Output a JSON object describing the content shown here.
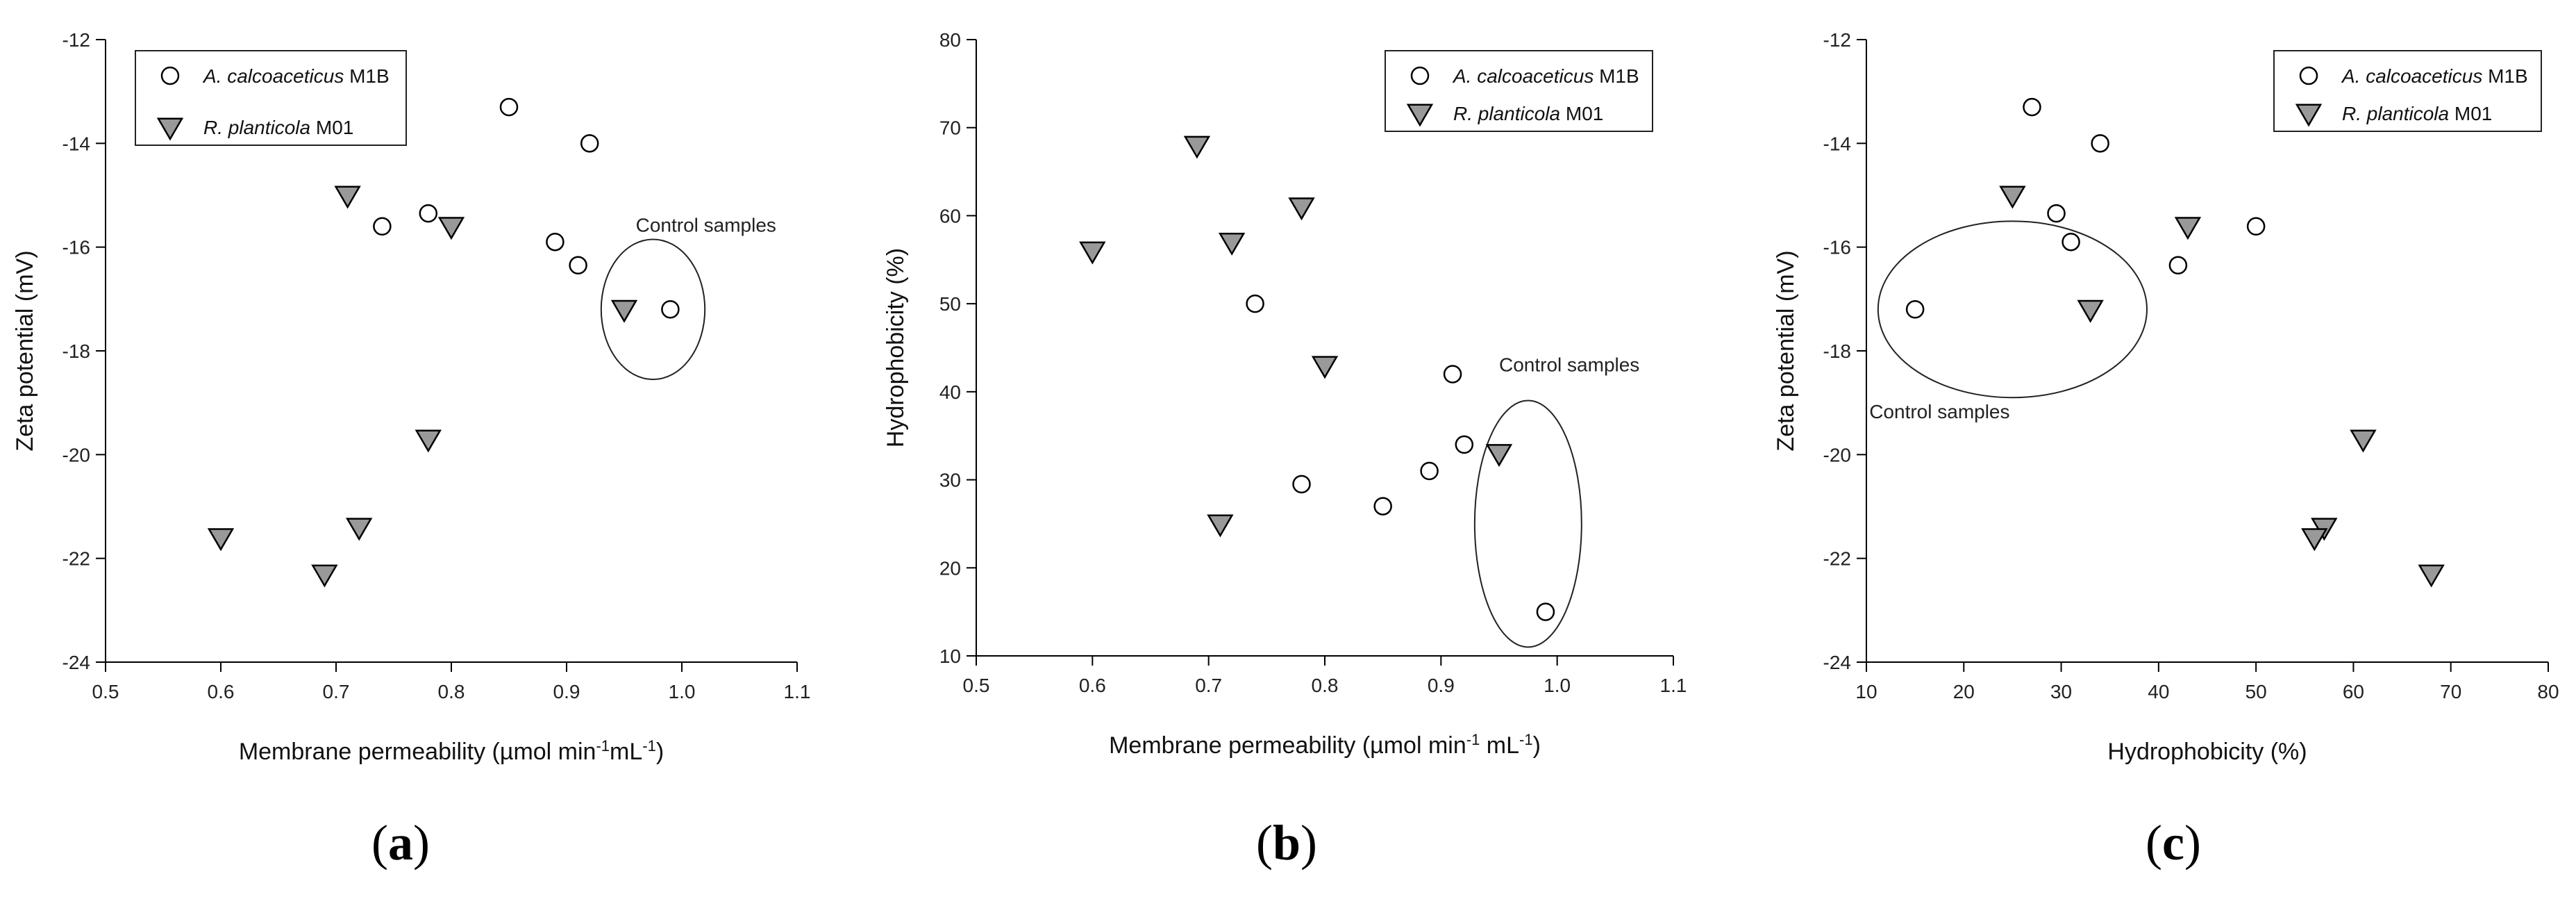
{
  "chart_data": [
    {
      "type": "scatter",
      "panel_label": "a",
      "xlabel": "Membrane permeability (µmol min",
      "xlabel_sup1": "-1",
      "xlabel_mid": "mL",
      "xlabel_sup2": "-1",
      "xlabel_end": ")",
      "ylabel": "Zeta potential (mV)",
      "xlim": [
        0.5,
        1.1
      ],
      "ylim": [
        -24,
        -12
      ],
      "xticks": [
        "0.5",
        "0.6",
        "0.7",
        "0.8",
        "0.9",
        "1.0",
        "1.1"
      ],
      "yticks": [
        "-24",
        "-22",
        "-20",
        "-18",
        "-16",
        "-14",
        "-12"
      ],
      "legend_position": "top-left",
      "series": [
        {
          "name_italic": "A. calcoaceticus",
          "name_rest": " M1B",
          "marker": "open-circle",
          "points": [
            [
              0.85,
              -13.3
            ],
            [
              0.92,
              -14.0
            ],
            [
              0.74,
              -15.6
            ],
            [
              0.78,
              -15.35
            ],
            [
              0.89,
              -15.9
            ],
            [
              0.91,
              -16.35
            ],
            [
              0.99,
              -17.2
            ]
          ]
        },
        {
          "name_italic": "R. planticola",
          "name_rest": " M01",
          "marker": "gray-down-triangle",
          "points": [
            [
              0.71,
              -15.0
            ],
            [
              0.8,
              -15.6
            ],
            [
              0.95,
              -17.2
            ],
            [
              0.78,
              -19.7
            ],
            [
              0.6,
              -21.6
            ],
            [
              0.72,
              -21.4
            ],
            [
              0.69,
              -22.3
            ]
          ]
        }
      ],
      "annotation": {
        "text": "Control samples",
        "x": 0.96,
        "y": -15.7,
        "anchor": "start"
      },
      "ellipse": {
        "cx": 0.975,
        "cy": -17.2,
        "rx": 0.045,
        "ry": 1.35
      }
    },
    {
      "type": "scatter",
      "panel_label": "b",
      "xlabel": "Membrane permeability (µmol min",
      "xlabel_sup1": "-1",
      "xlabel_mid": " mL",
      "xlabel_sup2": "-1",
      "xlabel_end": ")",
      "ylabel": "Hydrophobicity (%)",
      "xlim": [
        0.5,
        1.1
      ],
      "ylim": [
        10,
        80
      ],
      "xticks": [
        "0.5",
        "0.6",
        "0.7",
        "0.8",
        "0.9",
        "1.0",
        "1.1"
      ],
      "yticks": [
        "10",
        "20",
        "30",
        "40",
        "50",
        "60",
        "70",
        "80"
      ],
      "legend_position": "top-right",
      "series": [
        {
          "name_italic": "A. calcoaceticus",
          "name_rest": " M1B",
          "marker": "open-circle",
          "points": [
            [
              0.74,
              50
            ],
            [
              0.91,
              42
            ],
            [
              0.92,
              34
            ],
            [
              0.89,
              31
            ],
            [
              0.78,
              29.5
            ],
            [
              0.85,
              27
            ],
            [
              0.99,
              15
            ]
          ]
        },
        {
          "name_italic": "R. planticola",
          "name_rest": " M01",
          "marker": "gray-down-triangle",
          "points": [
            [
              0.69,
              68
            ],
            [
              0.78,
              61
            ],
            [
              0.6,
              56
            ],
            [
              0.72,
              57
            ],
            [
              0.8,
              43
            ],
            [
              0.95,
              33
            ],
            [
              0.71,
              25
            ]
          ]
        }
      ],
      "annotation": {
        "text": "Control samples",
        "x": 0.95,
        "y": 42.3,
        "anchor": "start"
      },
      "ellipse": {
        "cx": 0.975,
        "cy": 25,
        "rx": 0.046,
        "ry": 14
      }
    },
    {
      "type": "scatter",
      "panel_label": "c",
      "xlabel": "Hydrophobicity (%)",
      "ylabel": "Zeta potential (mV)",
      "xlim": [
        10,
        80
      ],
      "ylim": [
        -24,
        -12
      ],
      "xticks": [
        "10",
        "20",
        "30",
        "40",
        "50",
        "60",
        "70",
        "80"
      ],
      "yticks": [
        "-24",
        "-22",
        "-20",
        "-18",
        "-16",
        "-14",
        "-12"
      ],
      "legend_position": "top-right",
      "series": [
        {
          "name_italic": "A. calcoaceticus",
          "name_rest": " M1B",
          "marker": "open-circle",
          "points": [
            [
              27,
              -13.3
            ],
            [
              34,
              -14.0
            ],
            [
              29.5,
              -15.35
            ],
            [
              31,
              -15.9
            ],
            [
              42,
              -16.35
            ],
            [
              50,
              -15.6
            ],
            [
              15,
              -17.2
            ]
          ]
        },
        {
          "name_italic": "R. planticola",
          "name_rest": " M01",
          "marker": "gray-down-triangle",
          "points": [
            [
              25,
              -15.0
            ],
            [
              43,
              -15.6
            ],
            [
              33,
              -17.2
            ],
            [
              61,
              -19.7
            ],
            [
              57,
              -21.4
            ],
            [
              56,
              -21.6
            ],
            [
              68,
              -22.3
            ]
          ]
        }
      ],
      "annotation": {
        "text": "Control samples",
        "x": 10.3,
        "y": -19.3,
        "anchor": "start"
      },
      "ellipse": {
        "cx": 25,
        "cy": -17.2,
        "rx": 13.8,
        "ry": 1.7
      }
    }
  ],
  "colors": {
    "axis": "#000000",
    "triangle_fill": "#999999",
    "circle_fill": "#ffffff"
  }
}
